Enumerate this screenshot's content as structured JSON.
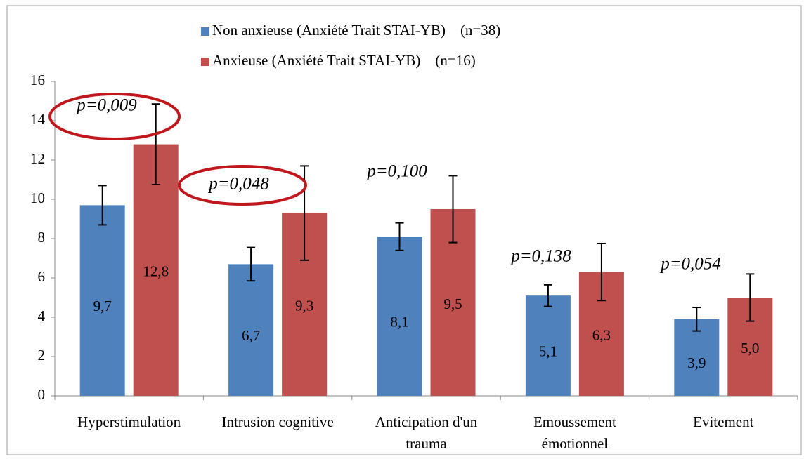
{
  "chart_data": {
    "type": "bar",
    "categories": [
      "Hyperstimulation",
      "Intrusion cognitive",
      "Anticipation d'un trauma",
      "Emoussement émotionnel",
      "Evitement"
    ],
    "series": [
      {
        "name": "Non anxieuse (Anxiété Trait STAI-YB)    (n=38)",
        "color": "#4f81bd",
        "values": [
          9.7,
          6.7,
          8.1,
          5.1,
          3.9
        ],
        "value_labels": [
          "9,7",
          "6,7",
          "8,1",
          "5,1",
          "3,9"
        ],
        "errors": [
          1.0,
          0.85,
          0.7,
          0.55,
          0.6
        ]
      },
      {
        "name": "Anxieuse (Anxiété Trait STAI-YB)    (n=16)",
        "color": "#c0504d",
        "values": [
          12.8,
          9.3,
          9.5,
          6.3,
          5.0
        ],
        "value_labels": [
          "12,8",
          "9,3",
          "9,5",
          "6,3",
          "5,0"
        ],
        "errors": [
          2.05,
          2.4,
          1.7,
          1.45,
          1.2
        ]
      }
    ],
    "annotations": [
      "p=0,009",
      "p=0,048",
      "p=0,100",
      "p=0,138",
      "p=0,054"
    ],
    "circled_color": "#c0171d",
    "ylim": [
      0,
      16
    ],
    "yticks": [
      0,
      2,
      4,
      6,
      8,
      10,
      12,
      14,
      16
    ],
    "grid": false,
    "legend": "top"
  }
}
